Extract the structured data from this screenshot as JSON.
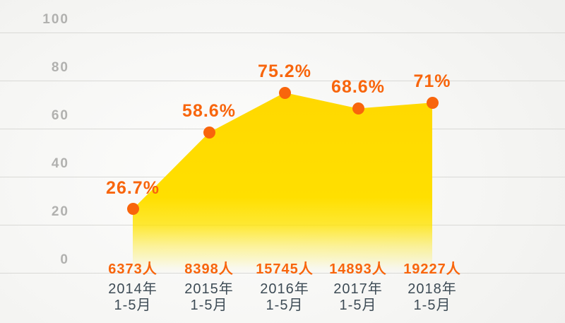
{
  "chart": {
    "colors": {
      "accent_orange": "#f8650c",
      "area_yellow_top": "#ffd800",
      "area_yellow_mid": "#ffe000",
      "grid_line": "#d9d9d6",
      "axis_tick_gray": "#b1b1af",
      "category_text": "#3d4b55",
      "background_outer": "#efefed",
      "background_inner": "#fdfdfc"
    }
  },
  "chart_data": {
    "type": "area",
    "title": "",
    "xlabel": "",
    "ylabel": "",
    "ylim": [
      0,
      100
    ],
    "y_ticks": [
      0,
      20,
      40,
      60,
      80,
      100
    ],
    "grid": true,
    "legend": false,
    "categories": [
      [
        "2014年",
        "1-5月"
      ],
      [
        "2015年",
        "1-5月"
      ],
      [
        "2016年",
        "1-5月"
      ],
      [
        "2017年",
        "1-5月"
      ],
      [
        "2018年",
        "1-5月"
      ]
    ],
    "values": [
      26.7,
      58.6,
      75.2,
      68.6,
      71
    ],
    "point_labels": [
      "26.7%",
      "58.6%",
      "75.2%",
      "68.6%",
      "71%"
    ],
    "count_labels": [
      "6373人",
      "8398人",
      "15745人",
      "14893人",
      "19227人"
    ]
  }
}
